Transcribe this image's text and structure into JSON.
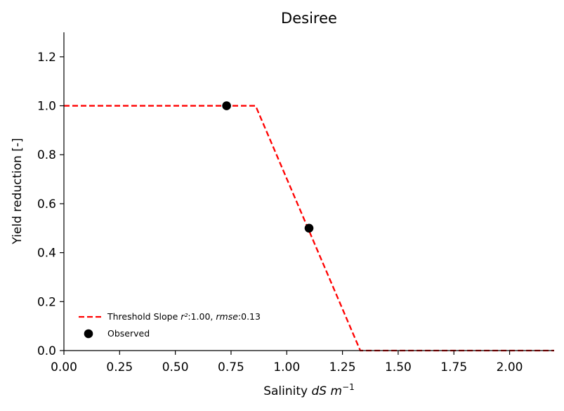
{
  "chart_data": {
    "type": "line",
    "title": "Desiree",
    "xlabel": {
      "prefix": "Salinity ",
      "var": "dS m",
      "sup": "−1"
    },
    "ylabel": "Yield reduction [-]",
    "xlim": [
      0,
      2.2
    ],
    "ylim": [
      0,
      1.3
    ],
    "xticks": [
      0.0,
      0.25,
      0.5,
      0.75,
      1.0,
      1.25,
      1.5,
      1.75,
      2.0
    ],
    "xtick_labels": [
      "0.00",
      "0.25",
      "0.50",
      "0.75",
      "1.00",
      "1.25",
      "1.50",
      "1.75",
      "2.00"
    ],
    "yticks": [
      0.0,
      0.2,
      0.4,
      0.6,
      0.8,
      1.0,
      1.2
    ],
    "ytick_labels": [
      "0.0",
      "0.2",
      "0.4",
      "0.6",
      "0.8",
      "1.0",
      "1.2"
    ],
    "grid": false,
    "legend_position": "lower-left",
    "series": [
      {
        "name": "Threshold Slope r²:1.00, rmse:0.13",
        "legend": {
          "prefix": "Threshold Slope ",
          "r2": "r²",
          "r2_val": ":1.00, ",
          "rmse": "rmse",
          "rmse_val": ":0.13"
        },
        "kind": "line",
        "style": "dashed",
        "color": "#ff0000",
        "x": [
          0.0,
          0.86,
          1.33,
          2.2
        ],
        "y": [
          1.0,
          1.0,
          0.0,
          0.0
        ]
      },
      {
        "name": "Observed",
        "kind": "scatter",
        "color": "#000000",
        "x": [
          0.73,
          1.1
        ],
        "y": [
          1.0,
          0.5
        ]
      }
    ]
  }
}
